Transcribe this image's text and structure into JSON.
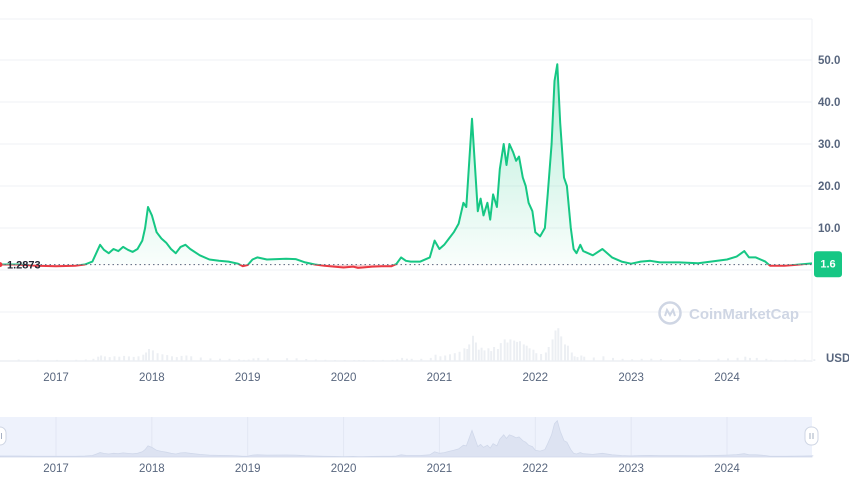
{
  "watermark": "CoinMarketCap",
  "currency_label": "USD",
  "reference_price_label": "1.2873",
  "current_price_tag": "1.6",
  "colors": {
    "up": "#16c784",
    "down": "#ea3943",
    "grid": "#eff2f5",
    "navigator_bg": "#eef2fc",
    "navigator_fill": "#dde3f2"
  },
  "chart_data": {
    "type": "line",
    "title": "",
    "xlabel": "",
    "ylabel": "",
    "x_ticks": [
      "2017",
      "2018",
      "2019",
      "2020",
      "2021",
      "2022",
      "2023",
      "2024"
    ],
    "y_ticks": [
      "10.0",
      "20.0",
      "30.0",
      "40.0",
      "50.0"
    ],
    "ylim": [
      -10,
      60
    ],
    "reference_price": 1.2873,
    "current_price": 1.6,
    "grid": true,
    "series": [
      {
        "points": [
          [
            2016.6,
            1.3
          ],
          [
            2016.8,
            1.0
          ],
          [
            2017.0,
            0.9
          ],
          [
            2017.2,
            1.0
          ],
          [
            2017.3,
            1.3
          ],
          [
            2017.38,
            2.0
          ],
          [
            2017.43,
            4.5
          ],
          [
            2017.46,
            6.0
          ],
          [
            2017.5,
            4.8
          ],
          [
            2017.55,
            4.0
          ],
          [
            2017.6,
            5.0
          ],
          [
            2017.65,
            4.5
          ],
          [
            2017.7,
            5.5
          ],
          [
            2017.75,
            4.8
          ],
          [
            2017.8,
            4.3
          ],
          [
            2017.85,
            5.0
          ],
          [
            2017.9,
            7.0
          ],
          [
            2017.93,
            10.0
          ],
          [
            2017.96,
            15.0
          ],
          [
            2018.0,
            13.0
          ],
          [
            2018.05,
            9.0
          ],
          [
            2018.1,
            7.5
          ],
          [
            2018.15,
            6.5
          ],
          [
            2018.2,
            5.0
          ],
          [
            2018.25,
            4.0
          ],
          [
            2018.3,
            5.5
          ],
          [
            2018.35,
            6.0
          ],
          [
            2018.4,
            5.0
          ],
          [
            2018.5,
            3.5
          ],
          [
            2018.6,
            2.5
          ],
          [
            2018.7,
            2.2
          ],
          [
            2018.8,
            2.0
          ],
          [
            2018.9,
            1.5
          ],
          [
            2018.95,
            0.9
          ],
          [
            2019.0,
            1.2
          ],
          [
            2019.05,
            2.5
          ],
          [
            2019.1,
            3.0
          ],
          [
            2019.2,
            2.5
          ],
          [
            2019.4,
            2.7
          ],
          [
            2019.5,
            2.6
          ],
          [
            2019.6,
            1.8
          ],
          [
            2019.7,
            1.3
          ],
          [
            2019.8,
            1.0
          ],
          [
            2019.9,
            0.8
          ],
          [
            2020.0,
            0.6
          ],
          [
            2020.1,
            0.8
          ],
          [
            2020.15,
            0.5
          ],
          [
            2020.2,
            0.6
          ],
          [
            2020.3,
            0.8
          ],
          [
            2020.4,
            0.9
          ],
          [
            2020.5,
            0.9
          ],
          [
            2020.55,
            1.4
          ],
          [
            2020.6,
            3.0
          ],
          [
            2020.65,
            2.2
          ],
          [
            2020.7,
            2.0
          ],
          [
            2020.8,
            2.0
          ],
          [
            2020.9,
            3.0
          ],
          [
            2020.95,
            7.0
          ],
          [
            2021.0,
            5.0
          ],
          [
            2021.05,
            6.0
          ],
          [
            2021.1,
            7.5
          ],
          [
            2021.15,
            9.0
          ],
          [
            2021.2,
            11.0
          ],
          [
            2021.25,
            16.0
          ],
          [
            2021.28,
            15.0
          ],
          [
            2021.3,
            22.0
          ],
          [
            2021.34,
            36.0
          ],
          [
            2021.37,
            25.0
          ],
          [
            2021.4,
            14.0
          ],
          [
            2021.43,
            17.0
          ],
          [
            2021.46,
            13.0
          ],
          [
            2021.5,
            16.0
          ],
          [
            2021.53,
            12.0
          ],
          [
            2021.56,
            18.0
          ],
          [
            2021.6,
            15.0
          ],
          [
            2021.63,
            24.0
          ],
          [
            2021.67,
            30.0
          ],
          [
            2021.7,
            25.0
          ],
          [
            2021.73,
            30.0
          ],
          [
            2021.77,
            28.0
          ],
          [
            2021.8,
            26.0
          ],
          [
            2021.83,
            27.0
          ],
          [
            2021.87,
            22.0
          ],
          [
            2021.9,
            20.0
          ],
          [
            2021.93,
            16.0
          ],
          [
            2021.97,
            14.0
          ],
          [
            2022.0,
            9.0
          ],
          [
            2022.05,
            8.0
          ],
          [
            2022.1,
            10.0
          ],
          [
            2022.13,
            18.0
          ],
          [
            2022.17,
            30.0
          ],
          [
            2022.2,
            45.0
          ],
          [
            2022.23,
            49.0
          ],
          [
            2022.26,
            35.0
          ],
          [
            2022.3,
            22.0
          ],
          [
            2022.33,
            20.0
          ],
          [
            2022.37,
            10.0
          ],
          [
            2022.4,
            5.0
          ],
          [
            2022.43,
            4.0
          ],
          [
            2022.47,
            6.0
          ],
          [
            2022.5,
            4.5
          ],
          [
            2022.6,
            3.5
          ],
          [
            2022.7,
            5.0
          ],
          [
            2022.8,
            3.0
          ],
          [
            2022.9,
            2.0
          ],
          [
            2023.0,
            1.5
          ],
          [
            2023.1,
            2.0
          ],
          [
            2023.2,
            2.2
          ],
          [
            2023.3,
            1.8
          ],
          [
            2023.5,
            1.8
          ],
          [
            2023.7,
            1.6
          ],
          [
            2023.9,
            2.2
          ],
          [
            2024.0,
            2.5
          ],
          [
            2024.1,
            3.2
          ],
          [
            2024.18,
            4.5
          ],
          [
            2024.23,
            3.0
          ],
          [
            2024.3,
            3.0
          ],
          [
            2024.4,
            2.0
          ],
          [
            2024.45,
            1.0
          ],
          [
            2024.6,
            1.0
          ],
          [
            2024.7,
            1.2
          ],
          [
            2024.8,
            1.4
          ],
          [
            2024.9,
            1.6
          ]
        ]
      }
    ]
  }
}
